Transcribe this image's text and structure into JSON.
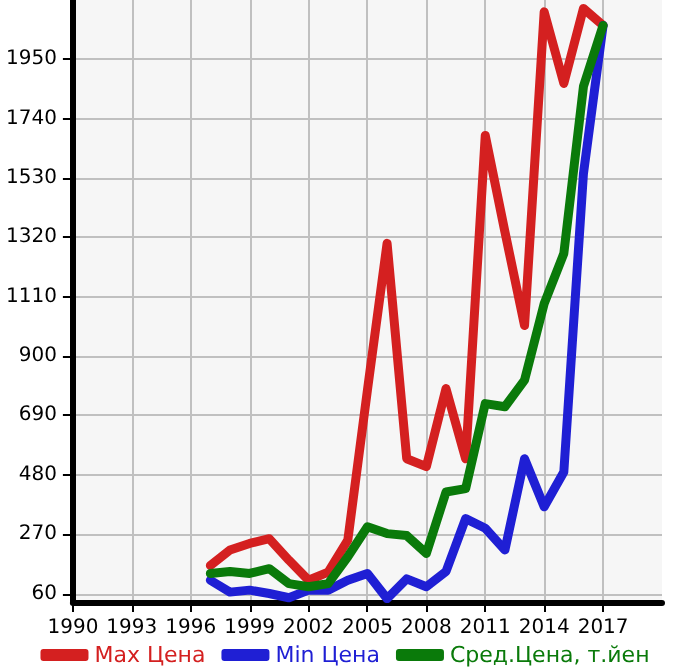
{
  "chart_data": {
    "type": "line",
    "x": [
      1997,
      1998,
      1999,
      2000,
      2001,
      2002,
      2003,
      2004,
      2005,
      2006,
      2007,
      2008,
      2009,
      2010,
      2011,
      2012,
      2013,
      2014,
      2015,
      2016,
      2017
    ],
    "series": [
      {
        "name": "Max Цена",
        "color": "#d42020",
        "values": [
          159,
          214,
          237,
          254,
          178,
          107,
          136,
          249,
          780,
          1299,
          537,
          509,
          785,
          537,
          1681,
          1340,
          1008,
          2118,
          1865,
          2130,
          2070
        ]
      },
      {
        "name": "Min Цена",
        "color": "#1f1fd4",
        "values": [
          107,
          65,
          72,
          60,
          45,
          72,
          72,
          107,
          131,
          42,
          112,
          84,
          138,
          325,
          291,
          214,
          537,
          367,
          490,
          1546,
          2070
        ]
      },
      {
        "name": "Сред.Цена, т.йен",
        "color": "#0a7a0a",
        "values": [
          131,
          138,
          131,
          148,
          95,
          84,
          95,
          190,
          296,
          272,
          265,
          202,
          419,
          431,
          732,
          721,
          815,
          1086,
          1263,
          1854,
          2070
        ]
      }
    ],
    "xlim": [
      1990,
      2020
    ],
    "xticks": [
      1990,
      1993,
      1996,
      1999,
      2002,
      2005,
      2008,
      2011,
      2014,
      2017
    ],
    "ylim": [
      30,
      2160
    ],
    "yticks": [
      60,
      270,
      480,
      690,
      900,
      1110,
      1320,
      1530,
      1740,
      1950
    ],
    "grid": true,
    "legend": "bottom",
    "marker": "none",
    "line_style": "solid"
  }
}
